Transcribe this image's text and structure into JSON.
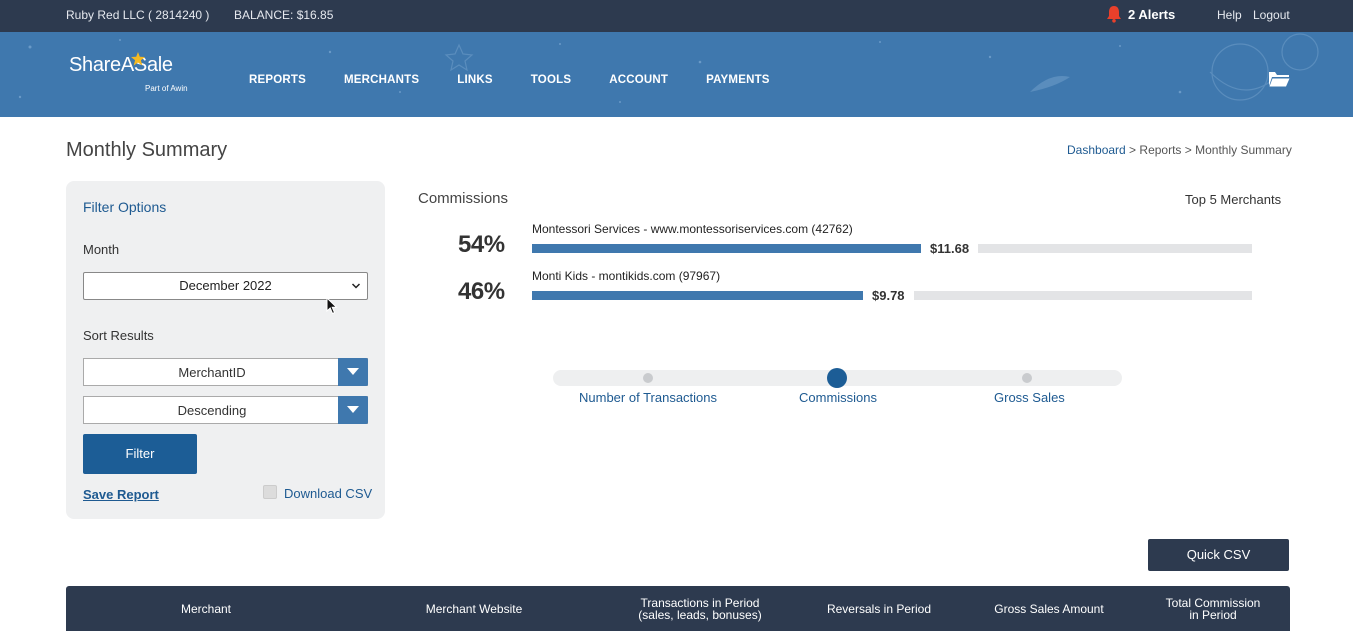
{
  "topbar": {
    "account": "Ruby Red LLC ( 2814240 )",
    "balance": "BALANCE: $16.85",
    "alerts": "2 Alerts",
    "help": "Help",
    "logout": "Logout"
  },
  "header": {
    "logo": "ShareASale",
    "logo_sub": "Part of Awin",
    "nav": [
      "REPORTS",
      "MERCHANTS",
      "LINKS",
      "TOOLS",
      "ACCOUNT",
      "PAYMENTS"
    ]
  },
  "page": {
    "title": "Monthly Summary",
    "breadcrumb": {
      "dashboard": "Dashboard",
      "sep": " > ",
      "reports": "Reports",
      "current": "Monthly Summary"
    }
  },
  "filter": {
    "title": "Filter Options",
    "month_label": "Month",
    "month_value": "December 2022",
    "sort_label": "Sort Results",
    "sort_field": "MerchantID",
    "sort_order": "Descending",
    "filter_button": "Filter",
    "save_report": "Save Report",
    "download_csv": "Download CSV"
  },
  "commissions": {
    "title": "Commissions",
    "top5": "Top 5 Merchants",
    "merchants": [
      {
        "name": "Montessori Services - www.montessoriservices.com (42762)",
        "percent": "54%",
        "amount": "$11.68",
        "share": 0.54
      },
      {
        "name": "Monti Kids - montikids.com (97967)",
        "percent": "46%",
        "amount": "$9.78",
        "share": 0.46
      }
    ]
  },
  "toggle": {
    "options": [
      "Number of Transactions",
      "Commissions",
      "Gross Sales"
    ],
    "active": "Commissions"
  },
  "quick_csv": "Quick CSV",
  "table": {
    "headers": [
      [
        "Merchant"
      ],
      [
        "Merchant Website"
      ],
      [
        "Transactions in Period",
        "(sales, leads, bonuses)"
      ],
      [
        "Reversals in Period"
      ],
      [
        "Gross Sales Amount"
      ],
      [
        "Total Commission",
        "in Period"
      ]
    ]
  },
  "colors": {
    "brand_blue": "#3f78ae",
    "dark_navy": "#2d3a4f",
    "link_blue": "#1e5a91",
    "alert_red": "#e8402b"
  }
}
